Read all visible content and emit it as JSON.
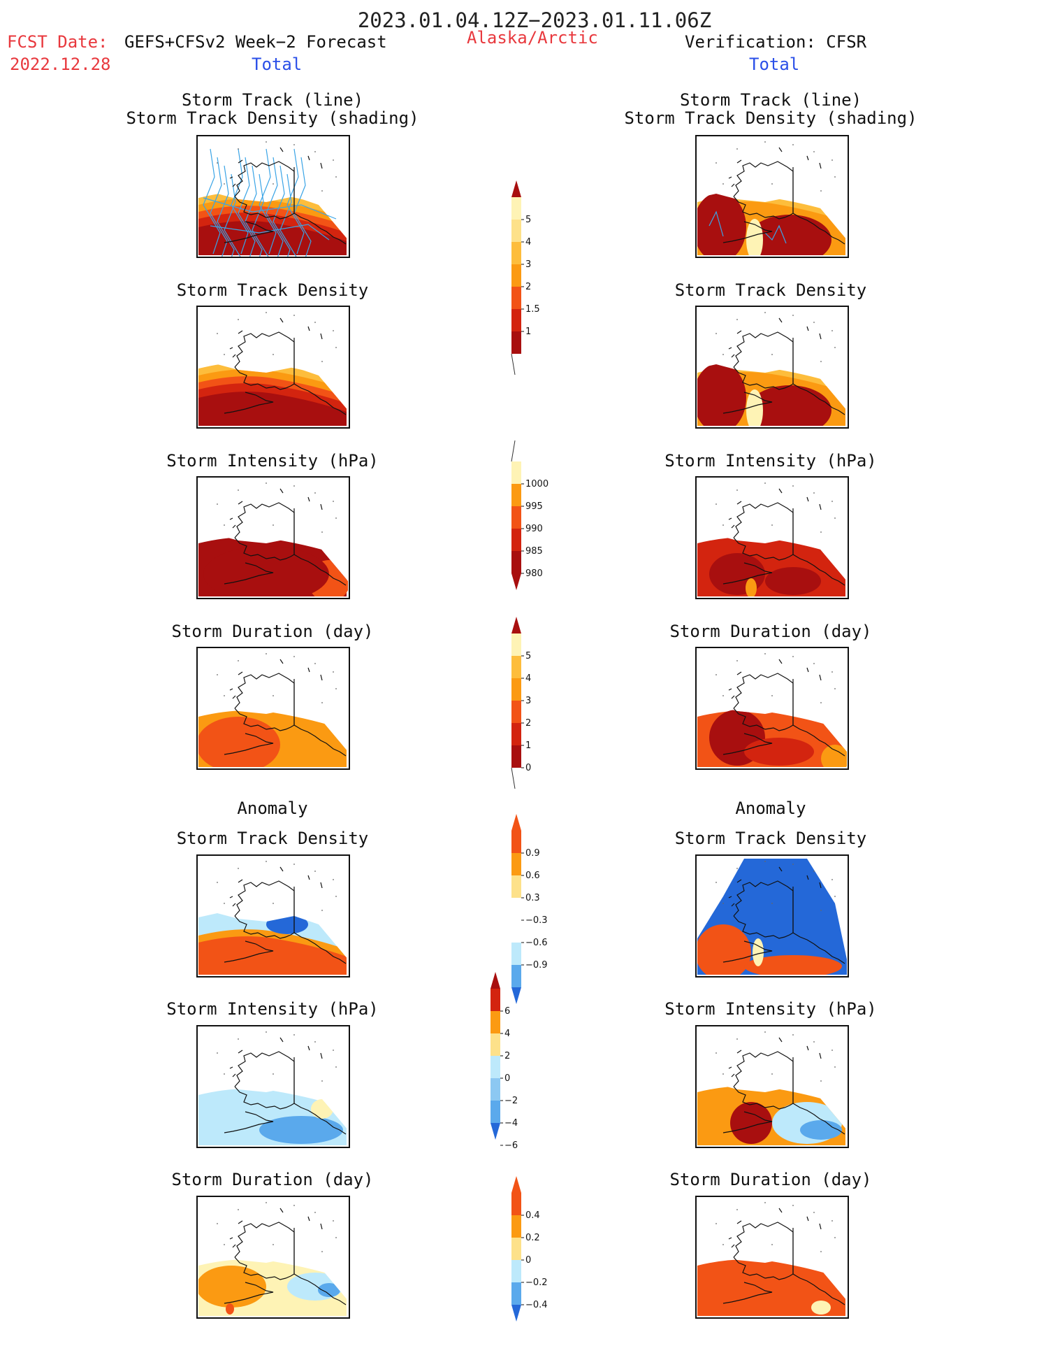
{
  "header": {
    "period": "2023.01.04.12Z−2023.01.11.06Z",
    "fcst_label": "FCST Date:",
    "fcst_model": "GEFS+CFSv2 Week−2 Forecast",
    "fcst_date": "2022.12.28",
    "region": "Alaska/Arctic",
    "verification": "Verification: CFSR"
  },
  "columns": {
    "left": {
      "section_total": "Total",
      "section_anomaly": "Anomaly"
    },
    "right": {
      "section_total": "Total",
      "section_anomaly": "Anomaly"
    }
  },
  "panels": {
    "track_line": "Storm Track (line)",
    "track_shading": "Storm Track Density (shading)",
    "track_density": "Storm Track Density",
    "intensity": "Storm Intensity (hPa)",
    "duration": "Storm Duration (day)"
  },
  "colorbars": {
    "density_total": [
      "1",
      "1.5",
      "2",
      "3",
      "4",
      "5"
    ],
    "intensity_total": [
      "1000",
      "995",
      "990",
      "985",
      "980"
    ],
    "duration_total": [
      "0",
      "1",
      "2",
      "3",
      "4",
      "5"
    ],
    "density_anom": [
      "0.9",
      "0.6",
      "0.3",
      "−0.3",
      "−0.6",
      "−0.9"
    ],
    "intensity_anom": [
      "6",
      "4",
      "2",
      "0",
      "−2",
      "−4",
      "−6"
    ],
    "duration_anom": [
      "0.4",
      "0.2",
      "0",
      "−0.2",
      "−0.4"
    ]
  },
  "colors": {
    "dark_red": "#a80f0f",
    "red": "#d3240f",
    "orange_red": "#f25316",
    "orange": "#fb9a12",
    "light_orange": "#fdbd3c",
    "pale_yellow": "#fef3b5",
    "light_blue": "#bde9fb",
    "mid_blue": "#5aa9ec",
    "blue": "#2468d8",
    "track_line": "#3aa4e6"
  }
}
